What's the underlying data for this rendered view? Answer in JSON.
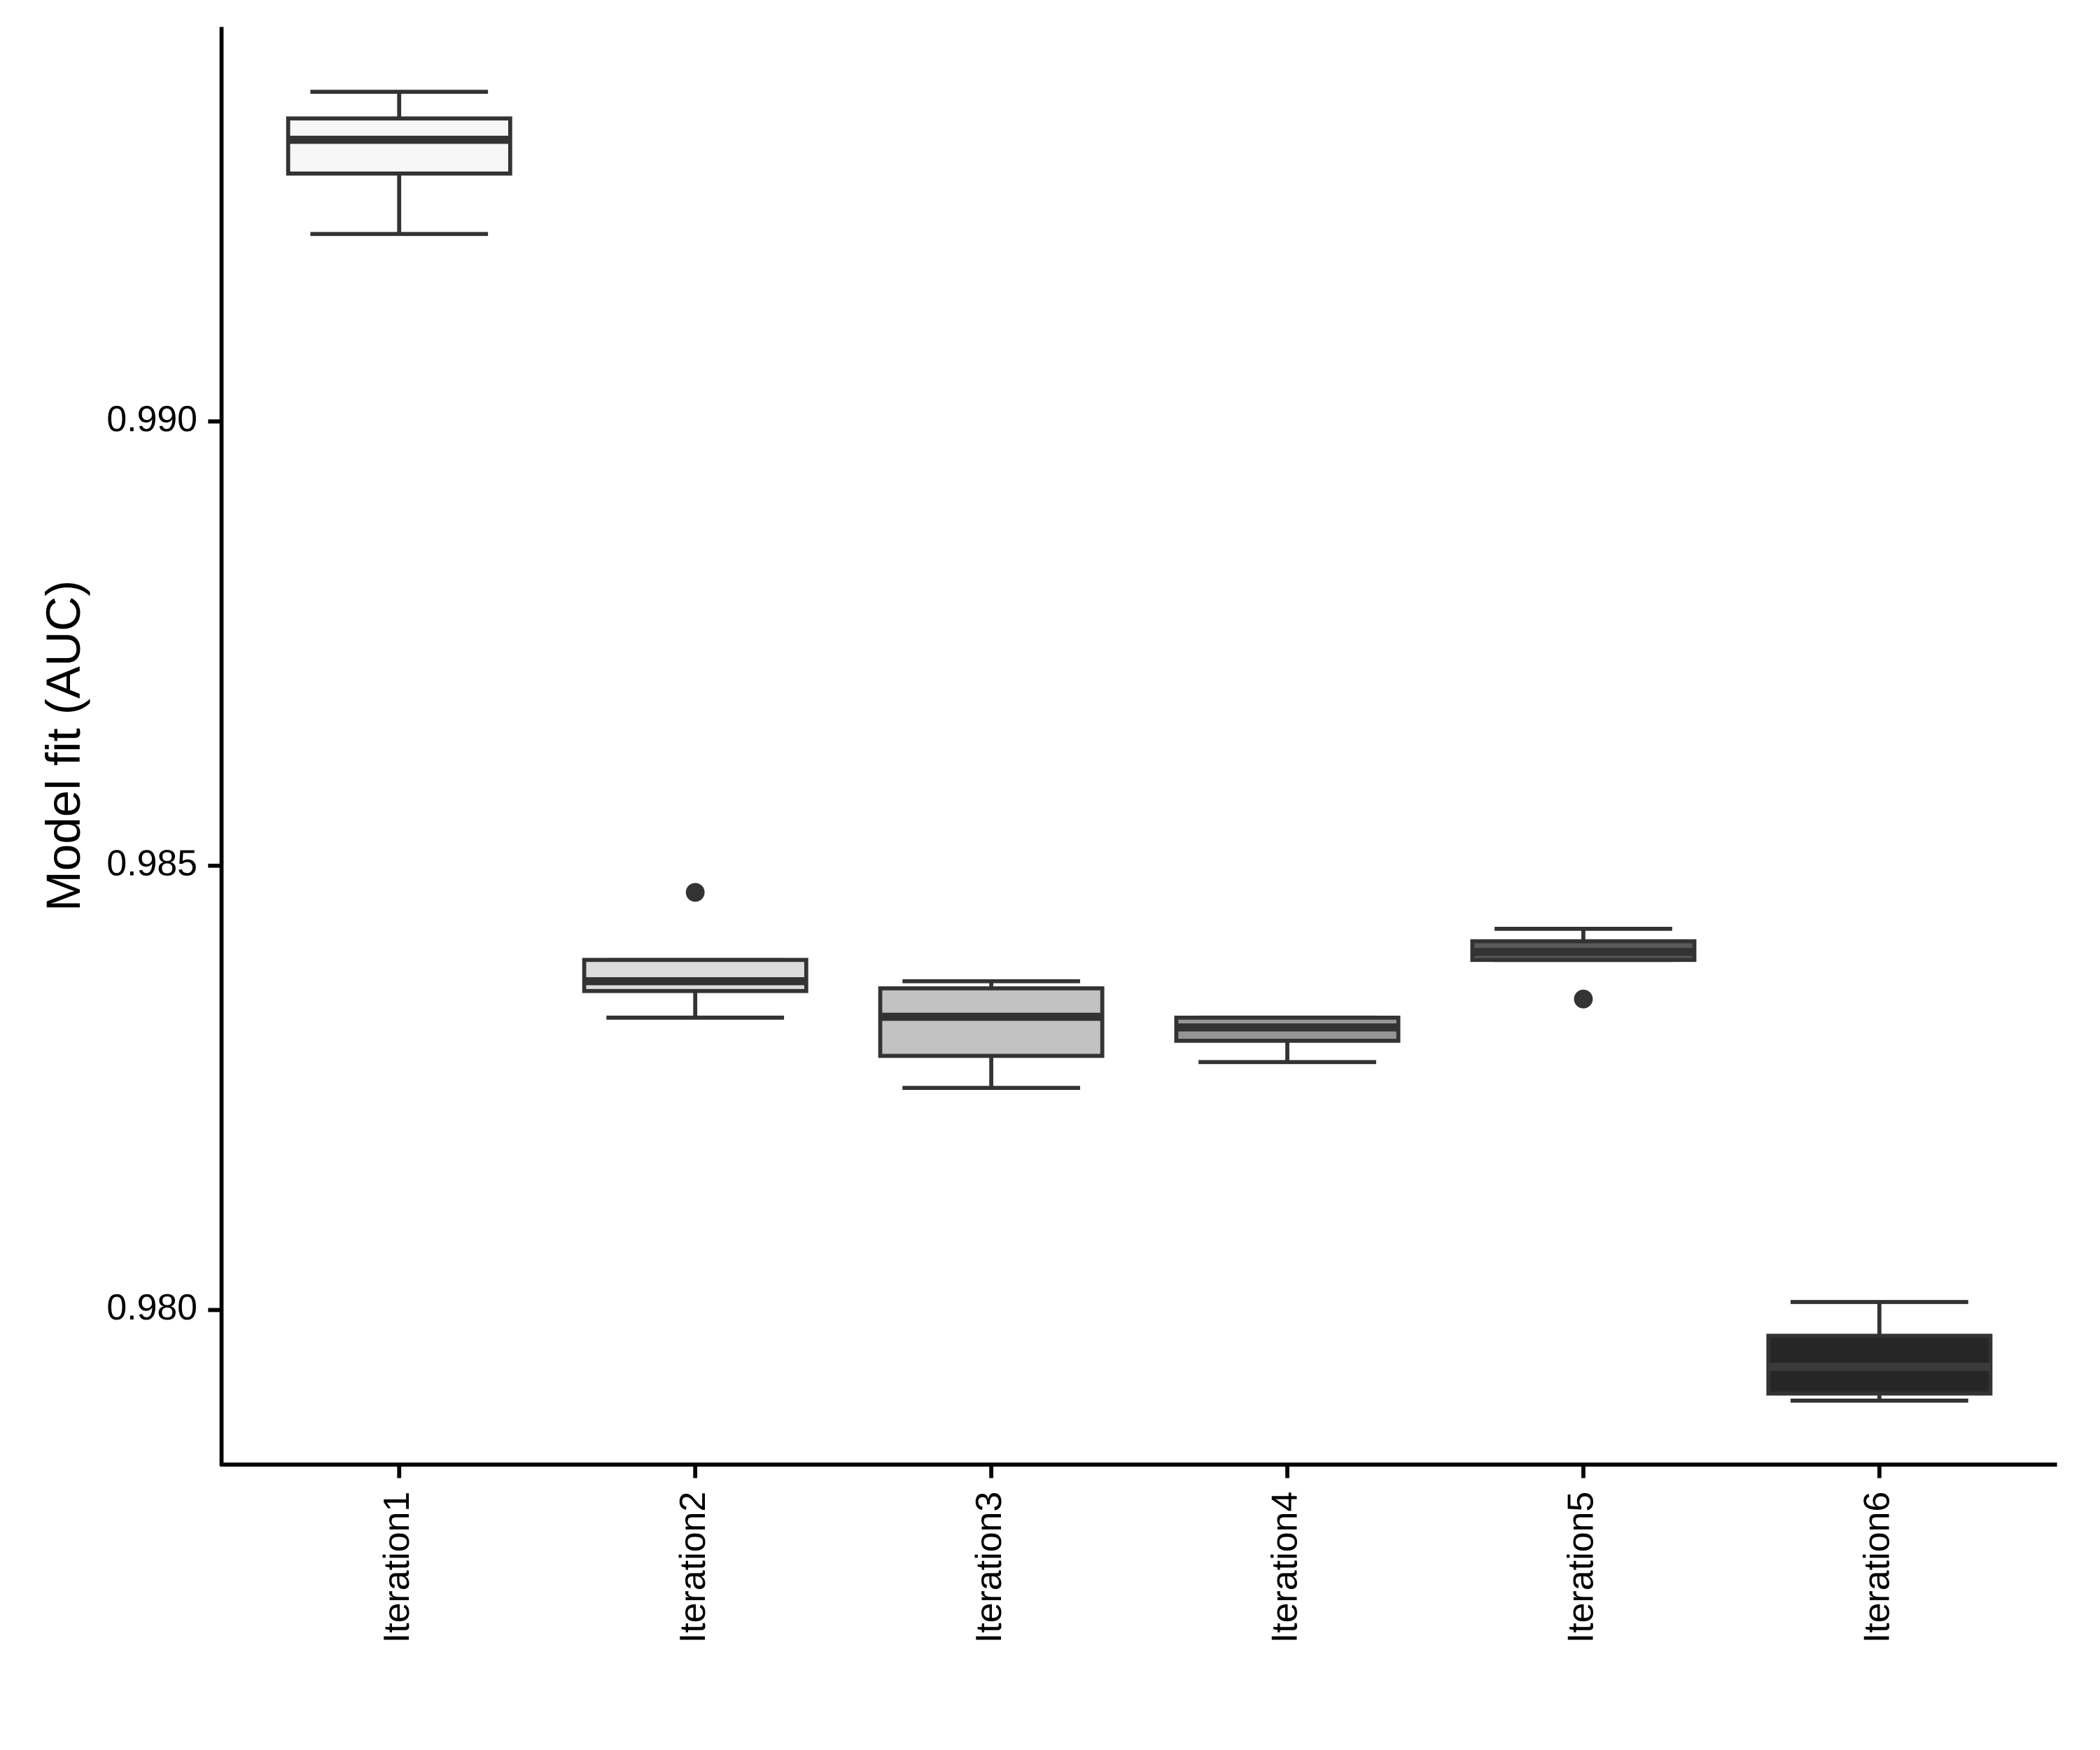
{
  "chart_data": {
    "type": "box",
    "y_label": "Model fit (AUC)",
    "categories": [
      "Iteration1",
      "Iteration2",
      "Iteration3",
      "Iteration4",
      "Iteration5",
      "Iteration6"
    ],
    "colors": [
      "#f7f7f7",
      "#dcdcdc",
      "#c2c2c2",
      "#969696",
      "#5a5a5a",
      "#262626"
    ],
    "boxes": [
      {
        "min": 0.99211,
        "q1": 0.99279,
        "median": 0.99317,
        "q3": 0.99341,
        "max": 0.99371,
        "outliers": []
      },
      {
        "min": 0.98329,
        "q1": 0.98359,
        "median": 0.9837,
        "q3": 0.98394,
        "max": 0.98394,
        "outliers": [
          0.9847
        ]
      },
      {
        "min": 0.9825,
        "q1": 0.98286,
        "median": 0.9833,
        "q3": 0.98362,
        "max": 0.9837,
        "outliers": []
      },
      {
        "min": 0.98279,
        "q1": 0.98303,
        "median": 0.98318,
        "q3": 0.98329,
        "max": 0.98329,
        "outliers": []
      },
      {
        "min": 0.98394,
        "q1": 0.98394,
        "median": 0.98403,
        "q3": 0.98415,
        "max": 0.98429,
        "outliers": [
          0.9835
        ]
      },
      {
        "min": 0.97898,
        "q1": 0.97906,
        "median": 0.97936,
        "q3": 0.97971,
        "max": 0.98009,
        "outliers": []
      }
    ],
    "ylim": [
      0.97826,
      0.99444
    ],
    "yticks": [
      {
        "value": 0.98,
        "label": "0.980"
      },
      0.985,
      {
        "value": 0.99,
        "label": "0.990"
      }
    ]
  }
}
